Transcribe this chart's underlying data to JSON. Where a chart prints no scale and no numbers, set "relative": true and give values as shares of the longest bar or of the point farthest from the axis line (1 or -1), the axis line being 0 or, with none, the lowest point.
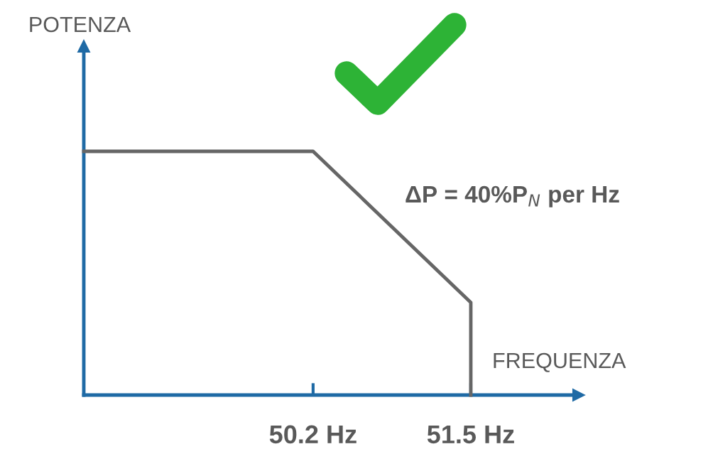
{
  "chart_data": {
    "type": "line",
    "relative": true,
    "xlabel": "FREQUENZA",
    "x": [
      48.31,
      50.2,
      51.5,
      51.5
    ],
    "series": [
      {
        "color": "#666666",
        "values": [
          1,
          1,
          0.38,
          0
        ]
      }
    ],
    "xlim": [
      48.31,
      52.39
    ],
    "xticks": [
      {
        "value": 50.2,
        "label": "50.2 Hz"
      },
      {
        "value": 51.5,
        "label": "51.5 Hz"
      }
    ],
    "annotations": [
      "POTENZA",
      "ΔP = 40%P$_{N}$ per Hz"
    ],
    "grid": false,
    "legend": false,
    "marker": "none",
    "line_style": "solid"
  }
}
